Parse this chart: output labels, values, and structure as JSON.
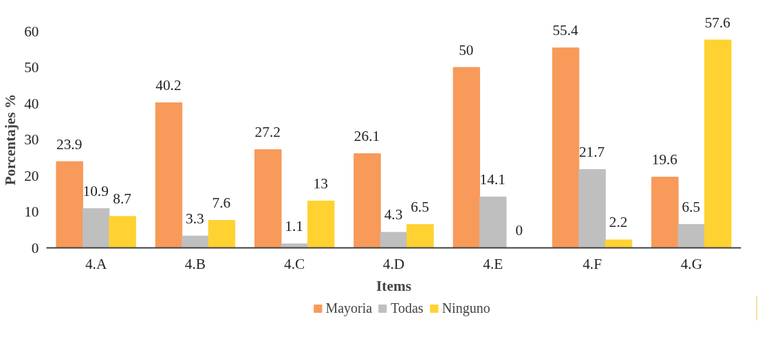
{
  "chart_data": {
    "type": "bar",
    "xlabel": "Items",
    "ylabel": "Porcentajes %",
    "categories": [
      "4.A",
      "4.B",
      "4.C",
      "4.D",
      "4.E",
      "4.F",
      "4.G"
    ],
    "series": [
      {
        "name": "Mayoria",
        "color": "#f79a5a",
        "values": [
          23.9,
          40.2,
          27.2,
          26.1,
          50,
          55.4,
          19.6
        ]
      },
      {
        "name": "Todas",
        "color": "#bfbfbf",
        "values": [
          10.9,
          3.3,
          1.1,
          4.3,
          14.1,
          21.7,
          6.5
        ]
      },
      {
        "name": "Ninguno",
        "color": "#ffd232",
        "values": [
          8.7,
          7.6,
          13,
          6.5,
          0,
          2.2,
          57.6
        ]
      }
    ],
    "ylim": [
      0,
      60
    ],
    "yticks": [
      0,
      10,
      20,
      30,
      40,
      50,
      60
    ],
    "grid": false,
    "legend": "bottom",
    "data_labels": true
  }
}
